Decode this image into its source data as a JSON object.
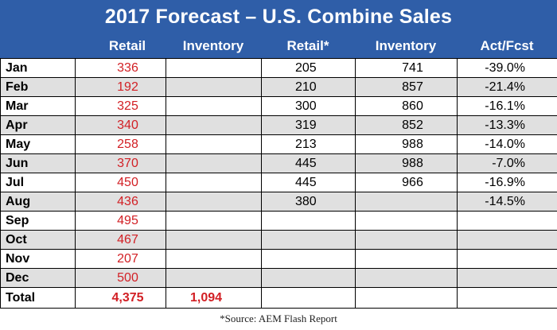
{
  "chart_data": {
    "type": "table",
    "title": "2017 Forecast – U.S. Combine Sales",
    "columns": [
      "",
      "Retail",
      "Inventory",
      "Retail*",
      "Inventory",
      "Act/Fcst"
    ],
    "rows": [
      {
        "month": "Jan",
        "retail": "336",
        "inventory": "",
        "retail_star": "205",
        "inventory2": "741",
        "act_fcst": "-39.0%"
      },
      {
        "month": "Feb",
        "retail": "192",
        "inventory": "",
        "retail_star": "210",
        "inventory2": "857",
        "act_fcst": "-21.4%"
      },
      {
        "month": "Mar",
        "retail": "325",
        "inventory": "",
        "retail_star": "300",
        "inventory2": "860",
        "act_fcst": "-16.1%"
      },
      {
        "month": "Apr",
        "retail": "340",
        "inventory": "",
        "retail_star": "319",
        "inventory2": "852",
        "act_fcst": "-13.3%"
      },
      {
        "month": "May",
        "retail": "258",
        "inventory": "",
        "retail_star": "213",
        "inventory2": "988",
        "act_fcst": "-14.0%"
      },
      {
        "month": "Jun",
        "retail": "370",
        "inventory": "",
        "retail_star": "445",
        "inventory2": "988",
        "act_fcst": "-7.0%"
      },
      {
        "month": "Jul",
        "retail": "450",
        "inventory": "",
        "retail_star": "445",
        "inventory2": "966",
        "act_fcst": "-16.9%"
      },
      {
        "month": "Aug",
        "retail": "436",
        "inventory": "",
        "retail_star": "380",
        "inventory2": "",
        "act_fcst": "-14.5%"
      },
      {
        "month": "Sep",
        "retail": "495",
        "inventory": "",
        "retail_star": "",
        "inventory2": "",
        "act_fcst": ""
      },
      {
        "month": "Oct",
        "retail": "467",
        "inventory": "",
        "retail_star": "",
        "inventory2": "",
        "act_fcst": ""
      },
      {
        "month": "Nov",
        "retail": "207",
        "inventory": "",
        "retail_star": "",
        "inventory2": "",
        "act_fcst": ""
      },
      {
        "month": "Dec",
        "retail": "500",
        "inventory": "",
        "retail_star": "",
        "inventory2": "",
        "act_fcst": ""
      }
    ],
    "total": {
      "label": "Total",
      "retail": "4,375",
      "inventory": "1,094",
      "retail_star": "",
      "inventory2": "",
      "act_fcst": ""
    },
    "footnote": "*Source:  AEM Flash Report"
  },
  "colors": {
    "header_bg": "#2f5ea8",
    "header_text": "#ffffff",
    "forecast_text": "#d21f24",
    "row_shade": "#e0e0e0"
  }
}
